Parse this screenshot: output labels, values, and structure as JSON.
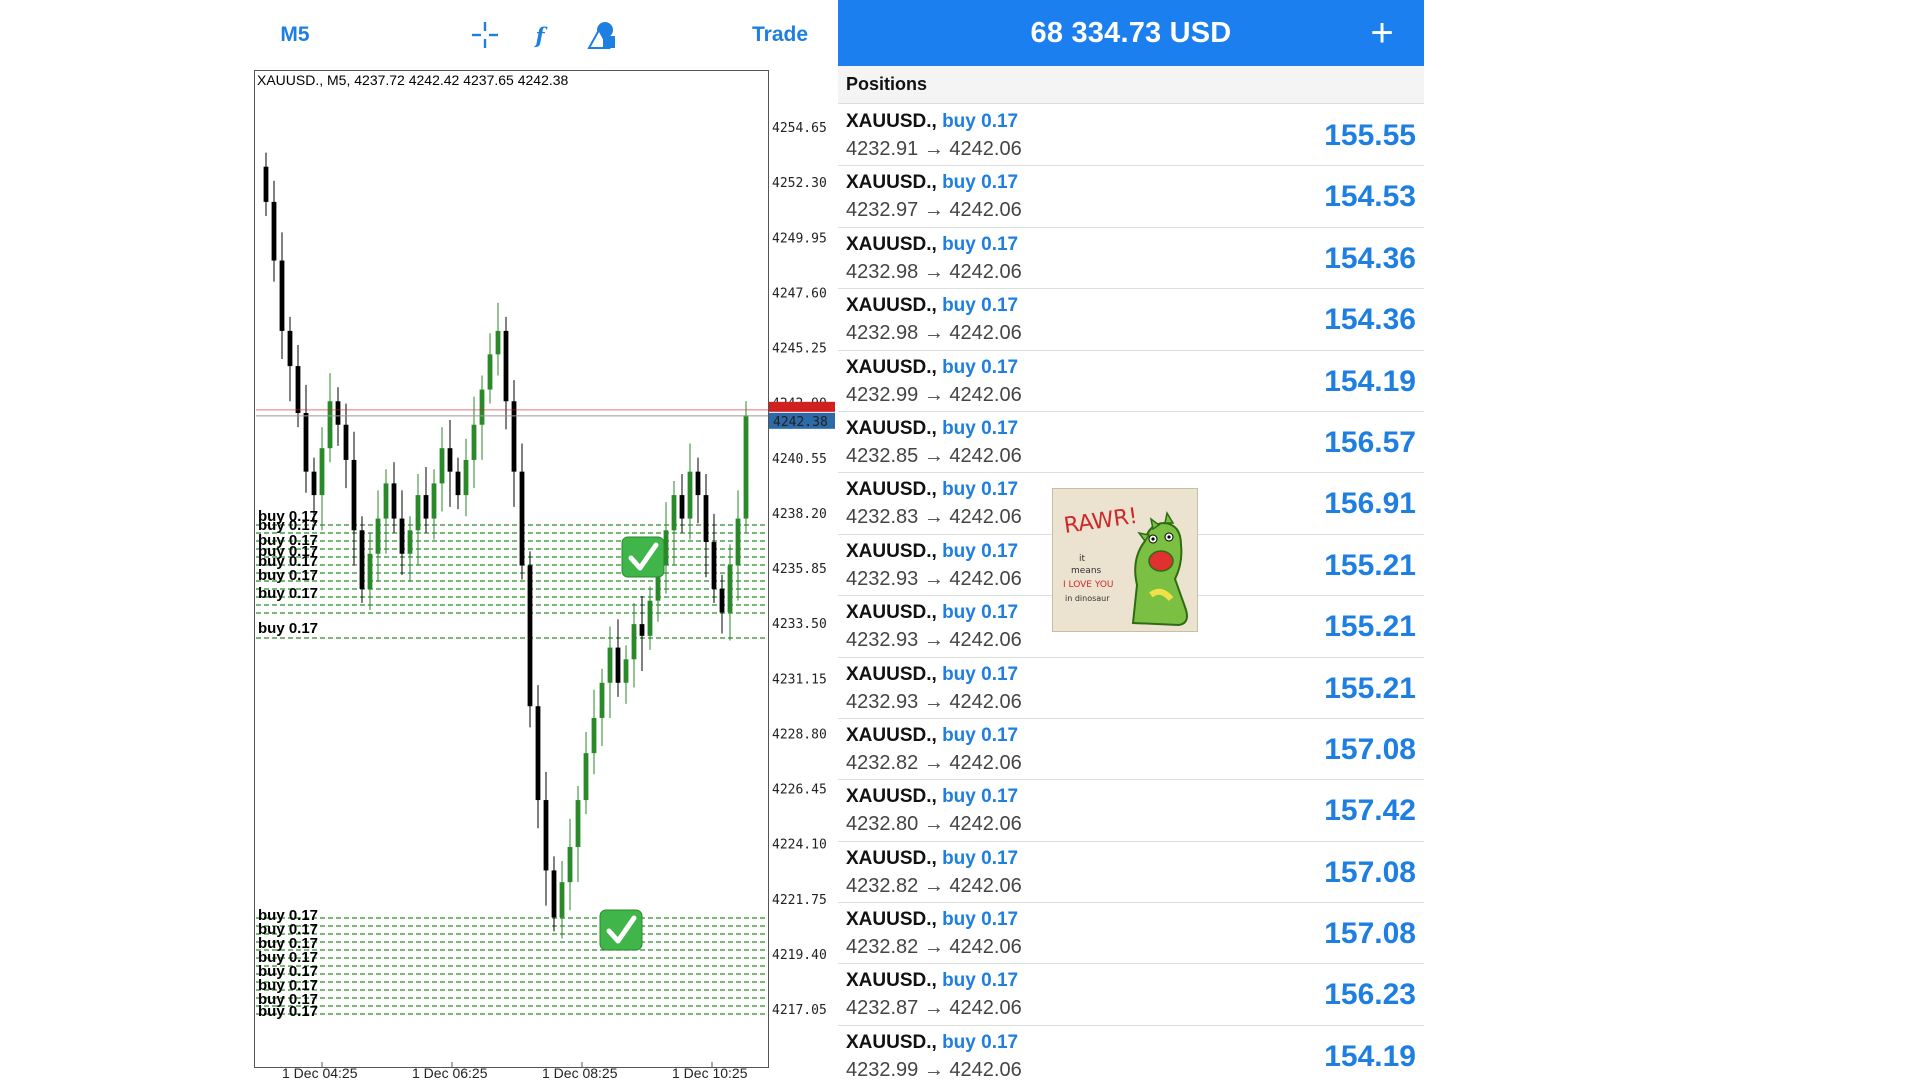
{
  "toolbar": {
    "timeframe": "M5",
    "crosshair_icon": "crosshair-icon",
    "indicators_icon": "function-icon",
    "indicators_glyph": "f",
    "objects_icon": "shapes-icon",
    "trade_label": "Trade"
  },
  "chart": {
    "info": "XAUUSD., M5, 4237.72 4242.42 4237.65 4242.38",
    "price_axis": [
      "4254.65",
      "4252.30",
      "4249.95",
      "4247.60",
      "4245.25",
      "4242.90",
      "4240.55",
      "4238.20",
      "4235.85",
      "4233.50",
      "4231.15",
      "4228.80",
      "4226.45",
      "4224.10",
      "4221.75",
      "4219.40",
      "4217.05"
    ],
    "current_price": "4242.38",
    "time_axis": [
      "1 Dec 04:25",
      "1 Dec 06:25",
      "1 Dec 08:25",
      "1 Dec 10:25"
    ],
    "order_label": "buy 0.17",
    "up_color": "#2a8a2a",
    "down_color": "#000000",
    "current_price_color": "#2d6aa8",
    "ask_line_color": "#d02020"
  },
  "account": {
    "balance": "68 334.73 USD",
    "add_icon": "plus-icon",
    "accent": "#1b7ff0"
  },
  "positions": {
    "header": "Positions",
    "items": [
      {
        "symbol": "XAUUSD.,",
        "direction": "buy 0.17",
        "open": "4232.91",
        "arrow": "→",
        "current": "4242.06",
        "profit": "155.55"
      },
      {
        "symbol": "XAUUSD.,",
        "direction": "buy 0.17",
        "open": "4232.97",
        "arrow": "→",
        "current": "4242.06",
        "profit": "154.53"
      },
      {
        "symbol": "XAUUSD.,",
        "direction": "buy 0.17",
        "open": "4232.98",
        "arrow": "→",
        "current": "4242.06",
        "profit": "154.36"
      },
      {
        "symbol": "XAUUSD.,",
        "direction": "buy 0.17",
        "open": "4232.98",
        "arrow": "→",
        "current": "4242.06",
        "profit": "154.36"
      },
      {
        "symbol": "XAUUSD.,",
        "direction": "buy 0.17",
        "open": "4232.99",
        "arrow": "→",
        "current": "4242.06",
        "profit": "154.19"
      },
      {
        "symbol": "XAUUSD.,",
        "direction": "buy 0.17",
        "open": "4232.85",
        "arrow": "→",
        "current": "4242.06",
        "profit": "156.57"
      },
      {
        "symbol": "XAUUSD.,",
        "direction": "buy 0.17",
        "open": "4232.83",
        "arrow": "→",
        "current": "4242.06",
        "profit": "156.91"
      },
      {
        "symbol": "XAUUSD.,",
        "direction": "buy 0.17",
        "open": "4232.93",
        "arrow": "→",
        "current": "4242.06",
        "profit": "155.21"
      },
      {
        "symbol": "XAUUSD.,",
        "direction": "buy 0.17",
        "open": "4232.93",
        "arrow": "→",
        "current": "4242.06",
        "profit": "155.21"
      },
      {
        "symbol": "XAUUSD.,",
        "direction": "buy 0.17",
        "open": "4232.93",
        "arrow": "→",
        "current": "4242.06",
        "profit": "155.21"
      },
      {
        "symbol": "XAUUSD.,",
        "direction": "buy 0.17",
        "open": "4232.82",
        "arrow": "→",
        "current": "4242.06",
        "profit": "157.08"
      },
      {
        "symbol": "XAUUSD.,",
        "direction": "buy 0.17",
        "open": "4232.80",
        "arrow": "→",
        "current": "4242.06",
        "profit": "157.42"
      },
      {
        "symbol": "XAUUSD.,",
        "direction": "buy 0.17",
        "open": "4232.82",
        "arrow": "→",
        "current": "4242.06",
        "profit": "157.08"
      },
      {
        "symbol": "XAUUSD.,",
        "direction": "buy 0.17",
        "open": "4232.82",
        "arrow": "→",
        "current": "4242.06",
        "profit": "157.08"
      },
      {
        "symbol": "XAUUSD.,",
        "direction": "buy 0.17",
        "open": "4232.87",
        "arrow": "→",
        "current": "4242.06",
        "profit": "156.23"
      },
      {
        "symbol": "XAUUSD.,",
        "direction": "buy 0.17",
        "open": "4232.99",
        "arrow": "→",
        "current": "4242.06",
        "profit": "154.19"
      }
    ]
  },
  "sticker": {
    "icon": "dinosaur-sticker-icon",
    "title": "RAWR!",
    "line1": "it",
    "line2": "means",
    "line3": "I LOVE YOU",
    "line4": "in dinosaur"
  }
}
